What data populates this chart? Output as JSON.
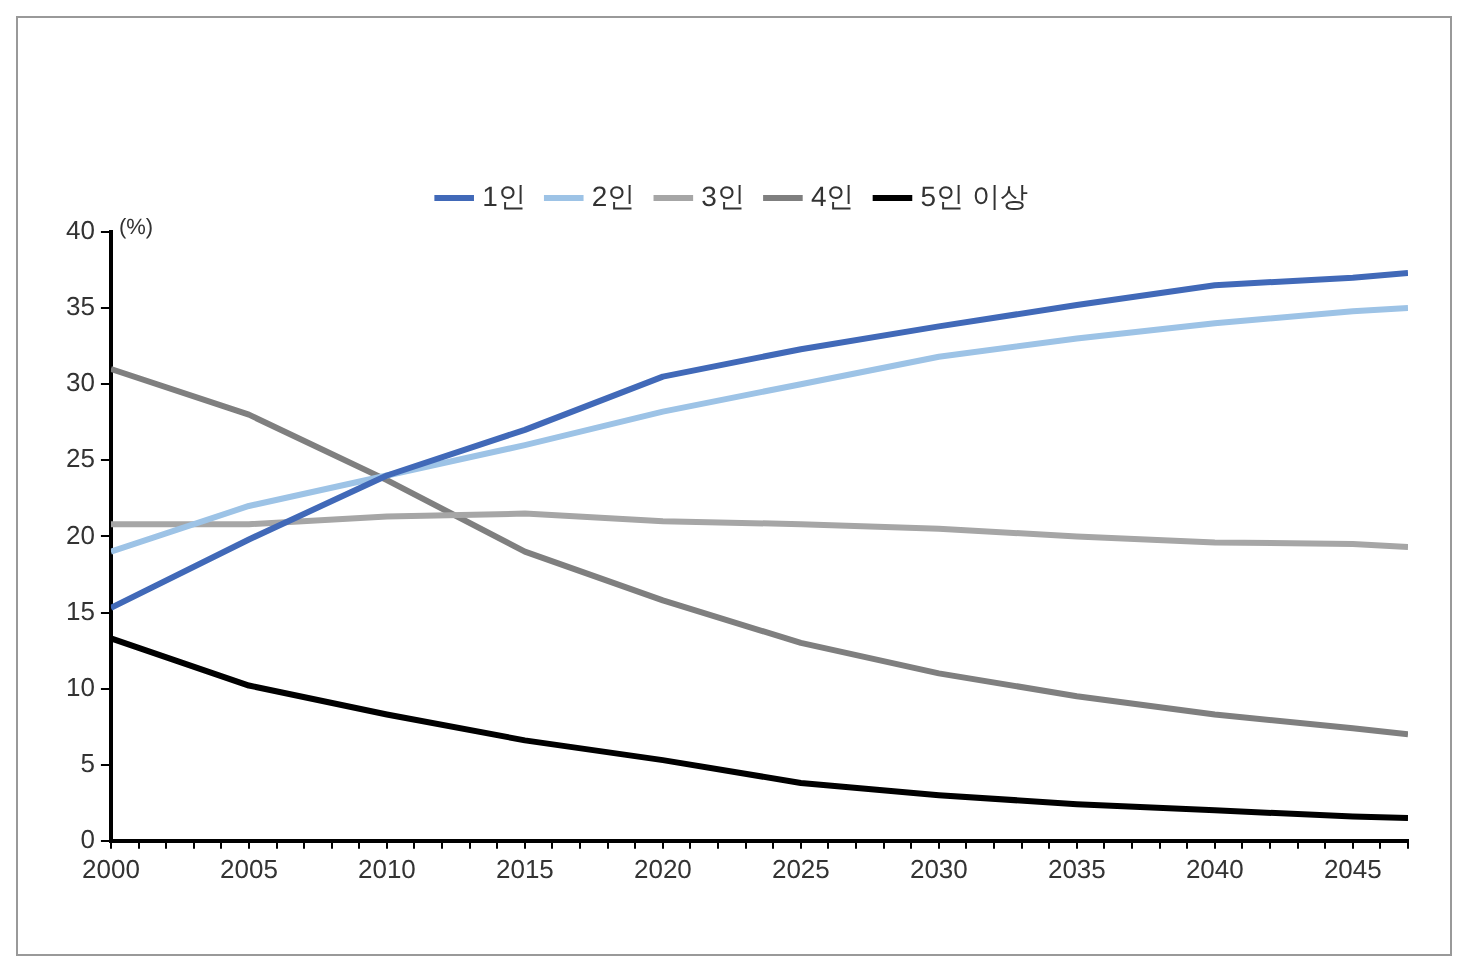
{
  "chart_data": {
    "type": "line",
    "ylabel": "(%)",
    "legend": "top",
    "marker": "none",
    "line_style": "solid",
    "grid": false,
    "x": [
      2000,
      2005,
      2010,
      2015,
      2020,
      2025,
      2030,
      2035,
      2040,
      2045,
      2047
    ],
    "xlim": [
      2000,
      2047
    ],
    "xticks": [
      2000,
      {
        "value": 2001,
        "label": null
      },
      {
        "value": 2002,
        "label": null
      },
      {
        "value": 2003,
        "label": null
      },
      {
        "value": 2004,
        "label": null
      },
      2005,
      {
        "value": 2006,
        "label": null
      },
      {
        "value": 2007,
        "label": null
      },
      {
        "value": 2008,
        "label": null
      },
      {
        "value": 2009,
        "label": null
      },
      2010,
      {
        "value": 2011,
        "label": null
      },
      {
        "value": 2012,
        "label": null
      },
      {
        "value": 2013,
        "label": null
      },
      {
        "value": 2014,
        "label": null
      },
      2015,
      {
        "value": 2016,
        "label": null
      },
      {
        "value": 2017,
        "label": null
      },
      {
        "value": 2018,
        "label": null
      },
      {
        "value": 2019,
        "label": null
      },
      2020,
      {
        "value": 2021,
        "label": null
      },
      {
        "value": 2022,
        "label": null
      },
      {
        "value": 2023,
        "label": null
      },
      {
        "value": 2024,
        "label": null
      },
      2025,
      {
        "value": 2026,
        "label": null
      },
      {
        "value": 2027,
        "label": null
      },
      {
        "value": 2028,
        "label": null
      },
      {
        "value": 2029,
        "label": null
      },
      2030,
      {
        "value": 2031,
        "label": null
      },
      {
        "value": 2032,
        "label": null
      },
      {
        "value": 2033,
        "label": null
      },
      {
        "value": 2034,
        "label": null
      },
      2035,
      {
        "value": 2036,
        "label": null
      },
      {
        "value": 2037,
        "label": null
      },
      {
        "value": 2038,
        "label": null
      },
      {
        "value": 2039,
        "label": null
      },
      2040,
      {
        "value": 2041,
        "label": null
      },
      {
        "value": 2042,
        "label": null
      },
      {
        "value": 2043,
        "label": null
      },
      {
        "value": 2044,
        "label": null
      },
      2045,
      {
        "value": 2046,
        "label": null
      },
      {
        "value": 2047,
        "label": null
      }
    ],
    "ylim": [
      0,
      40
    ],
    "yticks": [
      0,
      5,
      10,
      15,
      20,
      25,
      30,
      35,
      40
    ],
    "series": [
      {
        "name": "1인",
        "color": "#4169b8",
        "values": [
          15.3,
          19.8,
          24,
          27,
          30.5,
          32.3,
          33.8,
          35.2,
          36.5,
          37,
          37.3
        ]
      },
      {
        "name": "2인",
        "color": "#9dc3e6",
        "values": [
          19,
          22,
          24,
          26,
          28.2,
          30,
          31.8,
          33,
          34,
          34.8,
          35
        ]
      },
      {
        "name": "3인",
        "color": "#a6a6a6",
        "values": [
          20.8,
          20.8,
          21.3,
          21.5,
          21,
          20.8,
          20.5,
          20,
          19.6,
          19.5,
          19.3
        ]
      },
      {
        "name": "4인",
        "color": "#7f7f7f",
        "values": [
          31,
          28,
          23.7,
          19,
          15.8,
          13,
          11,
          9.5,
          8.3,
          7.4,
          7
        ]
      },
      {
        "name": "5인 이상",
        "color": "#000000",
        "values": [
          13.3,
          10.2,
          8.3,
          6.6,
          5.3,
          3.8,
          3,
          2.4,
          2,
          1.6,
          1.5
        ]
      }
    ]
  }
}
